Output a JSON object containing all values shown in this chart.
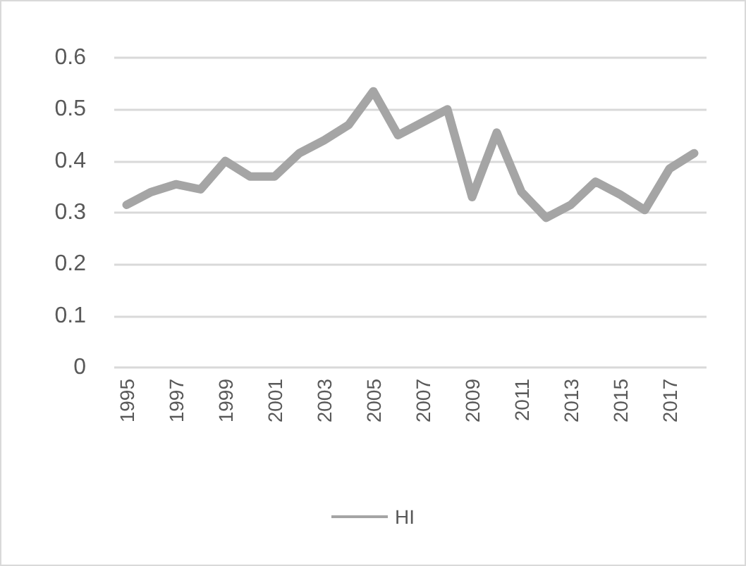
{
  "chart_data": {
    "type": "line",
    "categories": [
      "1995",
      null,
      "1997",
      null,
      "1999",
      null,
      "2001",
      null,
      "2003",
      null,
      "2005",
      null,
      "2007",
      null,
      "2009",
      null,
      "2011",
      null,
      "2013",
      null,
      "2015",
      null,
      "2017",
      null
    ],
    "series": [
      {
        "name": "HI",
        "color": "#a5a5a5",
        "values": [
          0.315,
          0.34,
          0.355,
          0.345,
          0.4,
          0.37,
          0.37,
          0.415,
          0.44,
          0.47,
          0.535,
          0.45,
          0.475,
          0.5,
          0.33,
          0.455,
          0.34,
          0.29,
          0.315,
          0.36,
          0.335,
          0.305,
          0.385,
          0.415
        ]
      }
    ],
    "ylim": [
      0,
      0.6
    ],
    "yticks": [
      0,
      0.1,
      0.2,
      0.3,
      0.4,
      0.5,
      0.6
    ],
    "grid": "y",
    "legend": "bottom",
    "marker": "none",
    "line_style": "solid"
  }
}
